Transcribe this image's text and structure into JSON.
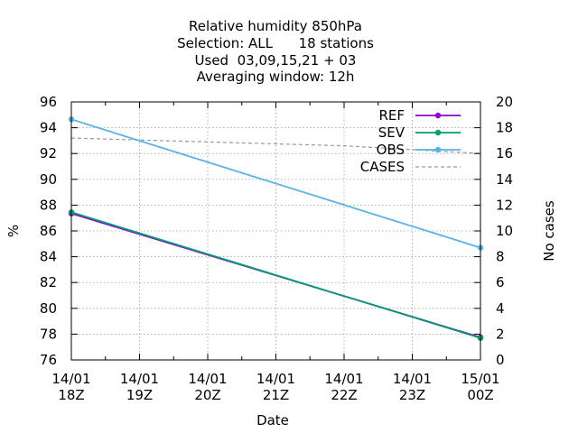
{
  "chart_data": {
    "type": "line",
    "title_lines": [
      "Relative humidity 850hPa",
      "Selection: ALL      18 stations",
      "Used  03,09,15,21 + 03",
      "Averaging window: 12h"
    ],
    "xlabel": "Date",
    "ylabel": "%",
    "y2label": "No cases",
    "x_ticks": [
      {
        "top": "14/01",
        "bottom": "18Z"
      },
      {
        "top": "14/01",
        "bottom": "19Z"
      },
      {
        "top": "14/01",
        "bottom": "20Z"
      },
      {
        "top": "14/01",
        "bottom": "21Z"
      },
      {
        "top": "14/01",
        "bottom": "22Z"
      },
      {
        "top": "14/01",
        "bottom": "23Z"
      },
      {
        "top": "15/01",
        "bottom": "00Z"
      }
    ],
    "ylim": [
      76,
      96
    ],
    "y_ticks": [
      "76",
      "78",
      "80",
      "82",
      "84",
      "86",
      "88",
      "90",
      "92",
      "94",
      "96"
    ],
    "y2lim": [
      0,
      20
    ],
    "y2_ticks": [
      "0",
      "2",
      "4",
      "6",
      "8",
      "10",
      "12",
      "14",
      "16",
      "18",
      "20"
    ],
    "grid": true,
    "legend_position": "top-right",
    "series": [
      {
        "name": "REF",
        "axis": "y",
        "color": "#9400d3",
        "dashed": false,
        "markers": true,
        "x": [
          "14/01 18Z",
          "15/01 00Z"
        ],
        "values": [
          87.35,
          77.75
        ]
      },
      {
        "name": "SEV",
        "axis": "y",
        "color": "#009e73",
        "dashed": false,
        "markers": true,
        "x": [
          "14/01 18Z",
          "15/01 00Z"
        ],
        "values": [
          87.45,
          77.7
        ]
      },
      {
        "name": "OBS",
        "axis": "y",
        "color": "#56b4e9",
        "dashed": false,
        "markers": true,
        "x": [
          "14/01 18Z",
          "15/01 00Z"
        ],
        "values": [
          94.65,
          84.7
        ]
      },
      {
        "name": "CASES",
        "axis": "y2",
        "color": "#999999",
        "dashed": true,
        "markers": false,
        "x": [
          "14/01 18Z",
          "14/01 20Z",
          "14/01 22Z",
          "15/01 00Z"
        ],
        "values": [
          17.2,
          16.9,
          16.6,
          16.0
        ]
      }
    ]
  }
}
